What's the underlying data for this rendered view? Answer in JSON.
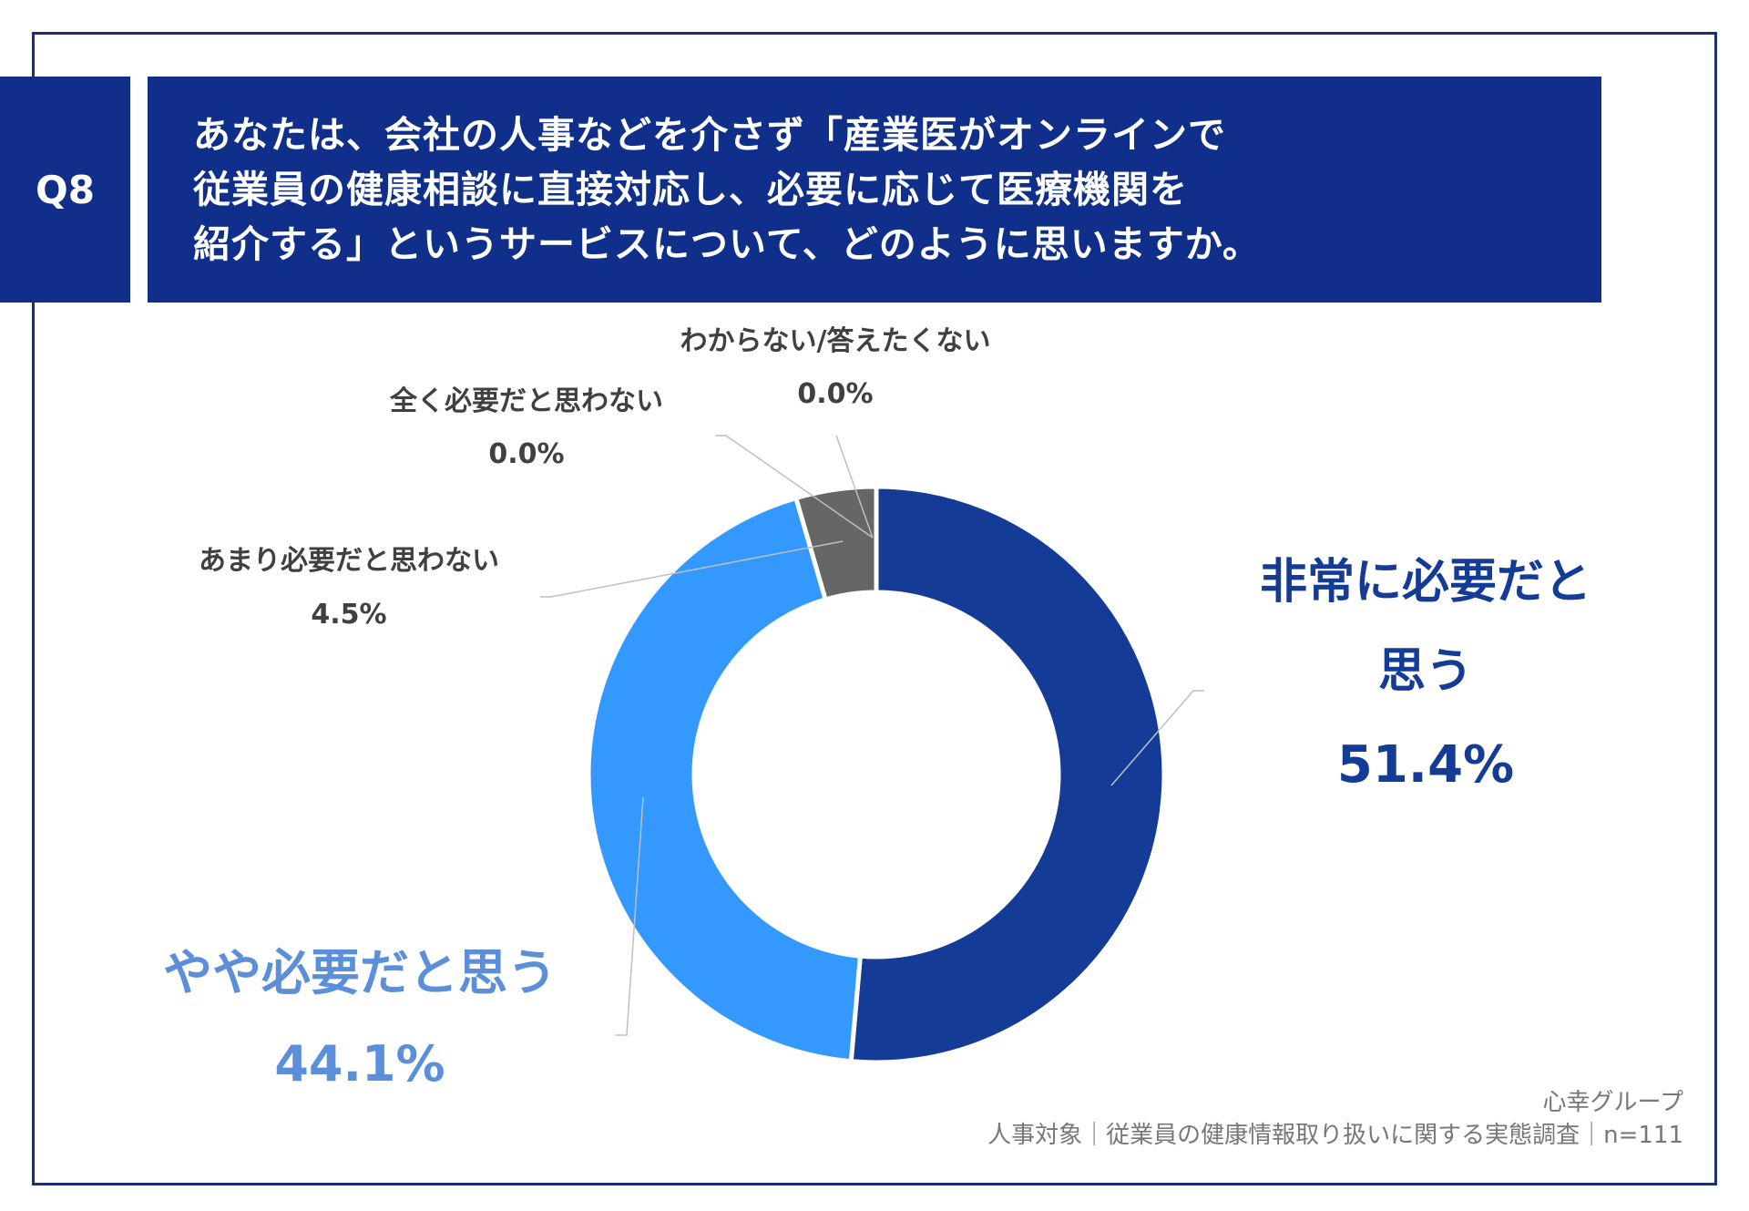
{
  "question": {
    "badge": "Q8",
    "lines": [
      "あなたは、会社の人事などを介さず「産業医がオンラインで",
      "従業員の健康相談に直接対応し、必要に応じて医療機関を",
      "紹介する」というサービスについて、どのように思いますか。"
    ]
  },
  "chart_data": {
    "type": "pie",
    "donut": true,
    "categories": [
      "非常に必要だと思う",
      "やや必要だと思う",
      "あまり必要だと思わない",
      "全く必要だと思わない",
      "わからない/答えたくない"
    ],
    "values": [
      51.4,
      44.1,
      4.5,
      0.0,
      0.0
    ],
    "value_labels": [
      "51.4%",
      "44.1%",
      "4.5%",
      "0.0%",
      "0.0%"
    ],
    "colors": [
      "#143c96",
      "#3399ff",
      "#666666",
      "#666666",
      "#666666"
    ],
    "label_colors": [
      "#143c96",
      "#5b8fd9",
      "#404040",
      "#404040",
      "#404040"
    ],
    "label_lines": [
      [
        "非常に必要だと",
        "思う"
      ],
      [
        "やや必要だと思う"
      ],
      [
        "あまり必要だと思わない"
      ],
      [
        "全く必要だと思わない"
      ],
      [
        "わからない/答えたくない"
      ]
    ]
  },
  "footer": {
    "company": "心幸グループ",
    "survey": "人事対象｜従業員の健康情報取り扱いに関する実態調査｜n=111"
  }
}
